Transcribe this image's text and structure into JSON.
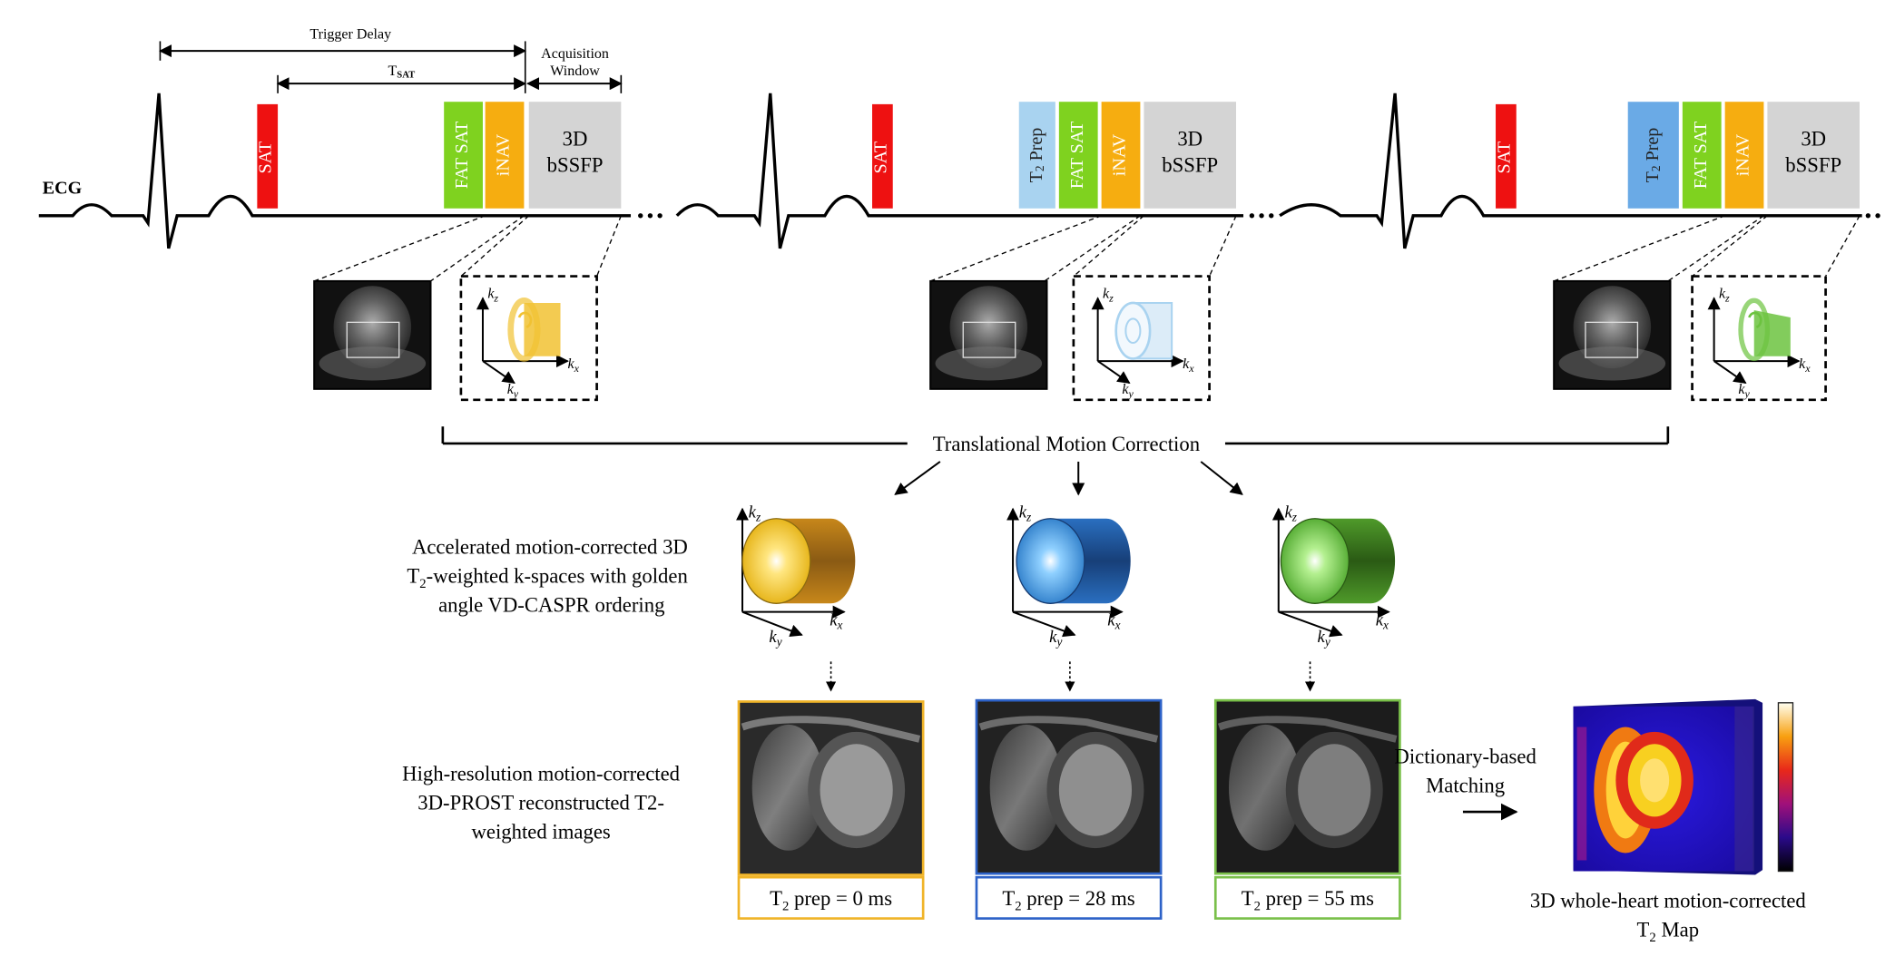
{
  "timing": {
    "trigger_delay": "Trigger Delay",
    "t_sat_main": "T",
    "t_sat_sub": "SAT",
    "acq_window_line1": "Acquisition",
    "acq_window_line2": "Window"
  },
  "ecg_label": "ECG",
  "pulses": {
    "sat": "SAT",
    "fat_sat": "FAT SAT",
    "inav": "iNAV",
    "bssfp_line1": "3D",
    "bssfp_line2": "bSSFP",
    "t2prep_t": "T",
    "t2prep_sub": "2",
    "t2prep_rest": " Prep"
  },
  "axes": {
    "k": "k",
    "z": "z",
    "x": "x",
    "y": "y"
  },
  "motion_correction_label": "Translational Motion Correction",
  "kspace_description": {
    "line1": "Accelerated motion-corrected 3D",
    "line2_pre": "T",
    "line2_sub": "2",
    "line2_post": "-weighted k-spaces with golden",
    "line3": "angle VD-CASPR ordering"
  },
  "recon_description": {
    "line1": "High-resolution motion-corrected",
    "line2": "3D-PROST reconstructed T2-",
    "line3": "weighted images"
  },
  "prep_labels": [
    {
      "pre": "T",
      "sub": "2",
      "post": " prep = 0 ms"
    },
    {
      "pre": "T",
      "sub": "2",
      "post": " prep = 28 ms"
    },
    {
      "pre": "T",
      "sub": "2",
      "post": " prep = 55 ms"
    }
  ],
  "matching": {
    "line1": "Dictionary-based",
    "line2": "Matching"
  },
  "t2map_caption": {
    "line1": "3D whole-heart motion-corrected",
    "line2_pre": "T",
    "line2_sub": "2",
    "line2_post": " Map"
  },
  "colors": {
    "sat_red": "#ee1111",
    "fat_sat_green": "#7fd21f",
    "inav_orange": "#f6ad10",
    "bssfp_gray": "#d4d4d4",
    "t2prep_blue_light": "#a9d3f0",
    "t2prep_blue": "#6aaae6",
    "yellow_kspace": "#f1c232",
    "blue_kspace": "#2a7fd0",
    "green_kspace": "#6cc33f",
    "frame_yellow": "#f0b428",
    "frame_blue": "#2d62c8",
    "frame_green": "#7ac04a"
  }
}
